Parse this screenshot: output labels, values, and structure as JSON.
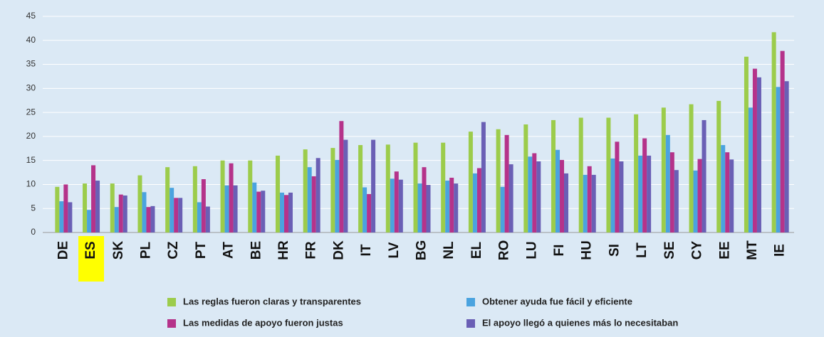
{
  "chart_data": {
    "type": "bar",
    "categories": [
      "DE",
      "ES",
      "SK",
      "PL",
      "CZ",
      "PT",
      "AT",
      "BE",
      "HR",
      "FR",
      "DK",
      "IT",
      "LV",
      "BG",
      "NL",
      "EL",
      "RO",
      "LU",
      "FI",
      "HU",
      "SI",
      "LT",
      "SE",
      "CY",
      "EE",
      "MT",
      "IE"
    ],
    "highlight": "ES",
    "highlight_color": "#ffff00",
    "series": [
      {
        "name": "Las reglas fueron claras y transparentes",
        "color": "#9ccc4b",
        "values": [
          9.5,
          10.2,
          10.2,
          11.9,
          13.6,
          13.8,
          15,
          15,
          16,
          17.3,
          17.6,
          18.2,
          18.3,
          18.7,
          18.7,
          21,
          21.5,
          22.5,
          23.4,
          23.9,
          23.9,
          24.6,
          26,
          26.7,
          27.4,
          36.6,
          41.7
        ]
      },
      {
        "name": "Obtener ayuda fue fácil y eficiente",
        "color": "#4aa3df",
        "values": [
          6.5,
          4.7,
          5.3,
          8.4,
          9.3,
          6.3,
          9.8,
          10.4,
          8.3,
          13.6,
          15.1,
          9.4,
          11.2,
          10.2,
          10.8,
          12.3,
          9.5,
          15.8,
          17.2,
          12,
          15.4,
          16,
          20.3,
          12.9,
          18.2,
          26,
          30.3
        ]
      },
      {
        "name": "Las medidas de apoyo fueron justas",
        "color": "#b5338a",
        "values": [
          10,
          14,
          7.9,
          5.3,
          7.2,
          11.1,
          14.4,
          8.5,
          7.8,
          11.7,
          23.2,
          8,
          12.7,
          13.6,
          11.4,
          13.4,
          20.3,
          16.5,
          15.1,
          13.8,
          18.9,
          19.6,
          16.7,
          15.3,
          16.7,
          34.1,
          37.8
        ]
      },
      {
        "name": "El apoyo llegó a quienes más lo necesitaban",
        "color": "#6a5fb5",
        "values": [
          6.3,
          10.8,
          7.7,
          5.5,
          7.2,
          5.4,
          9.8,
          8.7,
          8.3,
          15.5,
          19.3,
          19.3,
          11,
          9.9,
          10.2,
          23,
          14.2,
          14.8,
          12.3,
          12,
          14.8,
          16,
          13,
          23.4,
          15.2,
          32.3,
          31.5
        ]
      }
    ],
    "ylim": [
      0,
      45
    ],
    "yticks": [
      0,
      5,
      10,
      15,
      20,
      25,
      30,
      35,
      40,
      45
    ],
    "grid": true
  }
}
